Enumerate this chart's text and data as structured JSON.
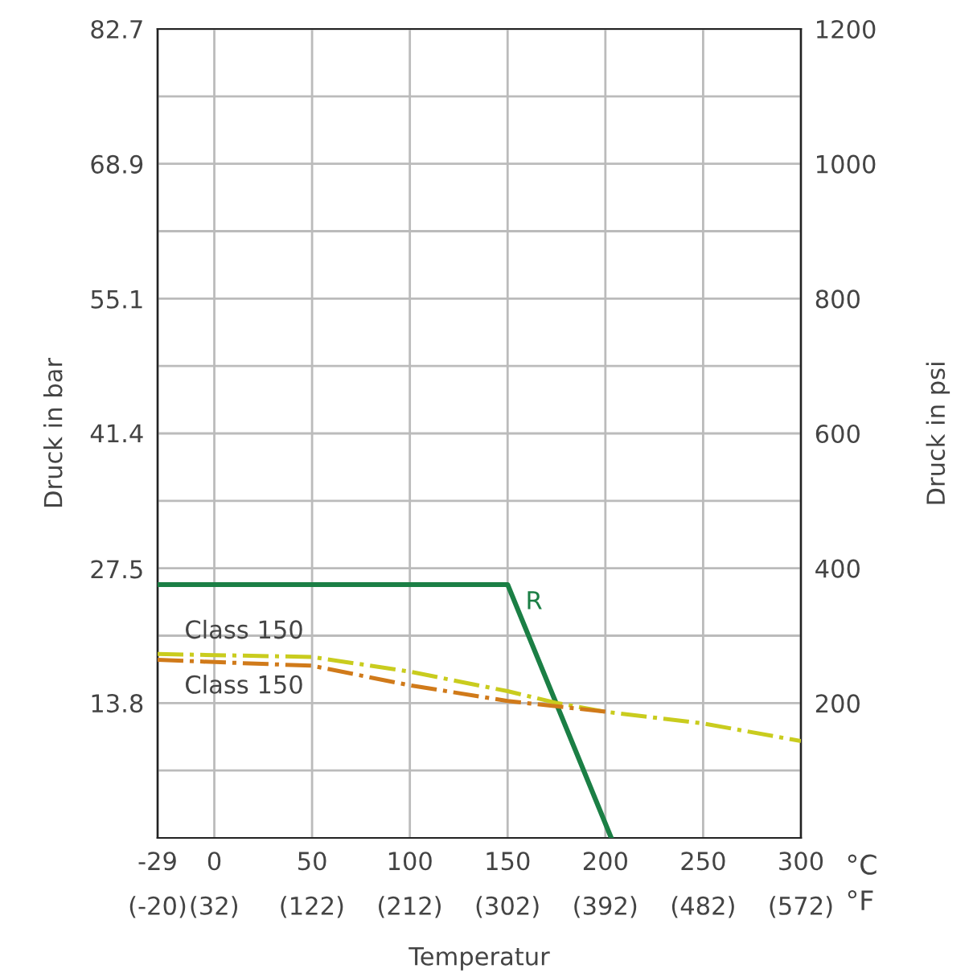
{
  "chart_data": {
    "type": "line",
    "xlabel": "Temperatur",
    "ylabel": "Druck in bar",
    "y2label": "Druck in psi",
    "xlim": [
      -29,
      300
    ],
    "xticks": [
      -29,
      0,
      50,
      100,
      150,
      200,
      250,
      300
    ],
    "x2lim": [
      -20,
      572
    ],
    "x2ticks": [
      {
        "value": -20,
        "label": "(-20)"
      },
      {
        "value": 32,
        "label": "(32)"
      },
      {
        "value": 122,
        "label": "(122)"
      },
      {
        "value": 212,
        "label": "(212)"
      },
      {
        "value": 302,
        "label": "(302)"
      },
      {
        "value": 392,
        "label": "(392)"
      },
      {
        "value": 482,
        "label": "(482)"
      },
      {
        "value": 572,
        "label": "(572)"
      }
    ],
    "ylim": [
      0,
      82.7
    ],
    "yticks": [
      13.8,
      27.5,
      41.4,
      55.1,
      68.9,
      82.7
    ],
    "y2lim": [
      0,
      1200
    ],
    "y2ticks": [
      {
        "value": 100,
        "label": null
      },
      200,
      {
        "value": 300,
        "label": null
      },
      400,
      {
        "value": 500,
        "label": null
      },
      600,
      {
        "value": 700,
        "label": null
      },
      800,
      {
        "value": 900,
        "label": null
      },
      1000,
      {
        "value": 1100,
        "label": null
      },
      1200
    ],
    "grid": true,
    "legend": false,
    "marker": "none",
    "annotations": [
      "°C",
      "°F"
    ],
    "series": [
      {
        "name": "R",
        "color": "#1b7f45",
        "line_style": "solid",
        "x": [
          -29,
          150,
          203
        ],
        "values": [
          25.9,
          25.9,
          0
        ]
      },
      {
        "name": "Class 150",
        "color": "#c9cc1e",
        "line_style": "dashdot",
        "x": [
          -29,
          50,
          100,
          150,
          175,
          200,
          250,
          300
        ],
        "values": [
          18.8,
          18.5,
          17.0,
          15.0,
          13.8,
          12.9,
          11.7,
          9.9
        ]
      },
      {
        "name": "Class 150",
        "color": "#d07a1a",
        "line_style": "dashdot",
        "x": [
          -29,
          50,
          100,
          150,
          200
        ],
        "values": [
          18.2,
          17.6,
          15.6,
          14.0,
          12.9
        ]
      }
    ]
  }
}
